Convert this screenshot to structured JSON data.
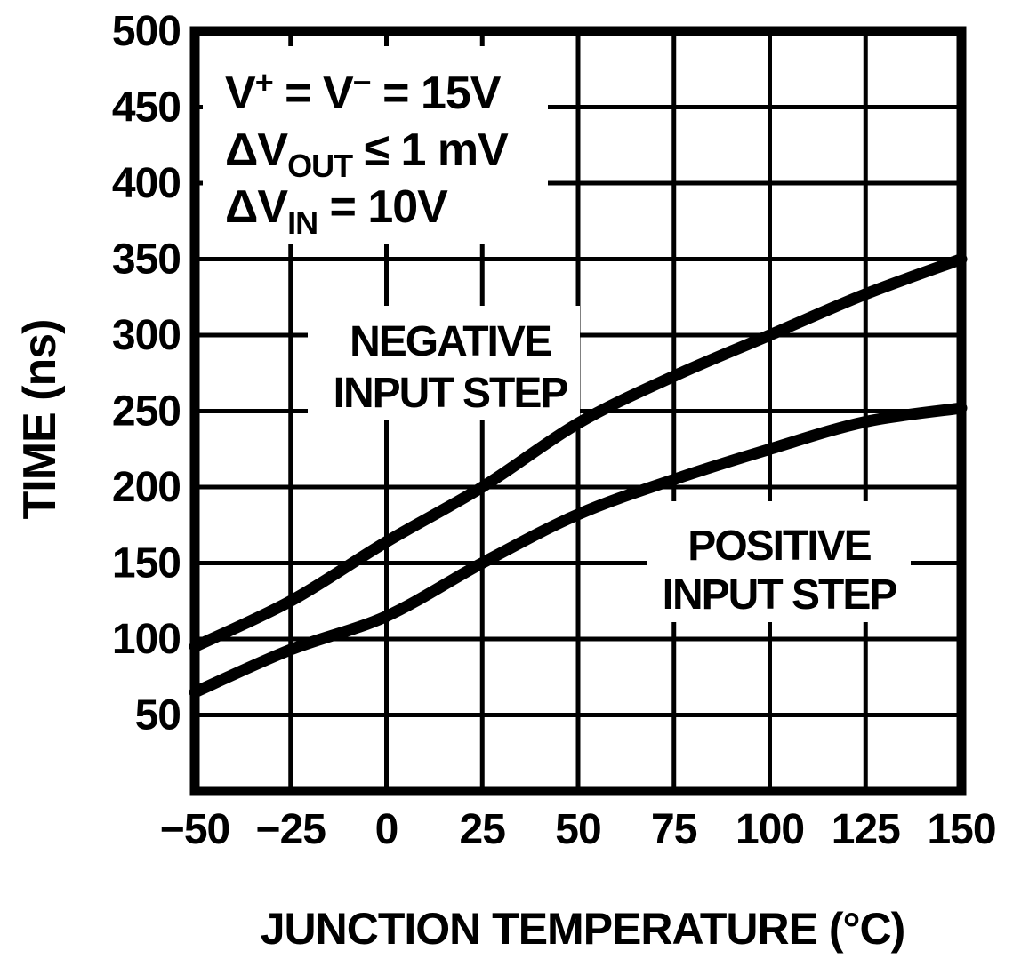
{
  "colors": {
    "ink": "#000000",
    "background": "#ffffff"
  },
  "chart_data": {
    "type": "line",
    "title": "",
    "xlabel": "JUNCTION TEMPERATURE (°C)",
    "ylabel": "TIME (ns)",
    "xlim": [
      -50,
      150
    ],
    "ylim": [
      0,
      500
    ],
    "x_ticks": [
      -50,
      -25,
      0,
      25,
      50,
      75,
      100,
      125,
      150
    ],
    "y_ticks": [
      50,
      100,
      150,
      200,
      250,
      300,
      350,
      400,
      450,
      500
    ],
    "grid": true,
    "legend_position": "on-chart-labels",
    "x": [
      -50,
      -25,
      0,
      25,
      50,
      75,
      100,
      125,
      150
    ],
    "series": [
      {
        "name": "NEGATIVE INPUT STEP",
        "label_lines": [
          "NEGATIVE",
          "INPUT STEP"
        ],
        "values": [
          95,
          125,
          164,
          200,
          242,
          273,
          300,
          327,
          350
        ]
      },
      {
        "name": "POSITIVE INPUT STEP",
        "label_lines": [
          "POSITIVE",
          "INPUT STEP"
        ],
        "values": [
          65,
          93,
          115,
          150,
          182,
          205,
          225,
          243,
          252
        ]
      }
    ],
    "conditions": [
      "V^+^ = V^−^ = 15V",
      "ΔV_OUT_ ≤ 1 mV",
      "ΔV_IN_ = 10V"
    ]
  }
}
